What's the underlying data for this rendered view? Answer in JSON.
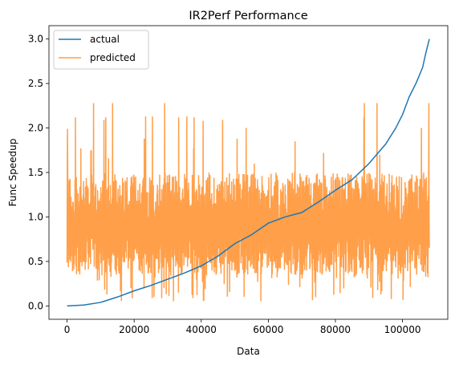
{
  "chart_data": {
    "type": "line",
    "title": "IR2Perf Performance",
    "xlabel": "Data",
    "ylabel": "Func Speedup",
    "xlim": [
      -5400,
      113500
    ],
    "ylim": [
      -0.15,
      3.15
    ],
    "xticks": [
      0,
      20000,
      40000,
      60000,
      80000,
      100000
    ],
    "yticks": [
      0.0,
      0.5,
      1.0,
      1.5,
      2.0,
      2.5,
      3.0
    ],
    "xtick_labels": [
      "0",
      "20000",
      "40000",
      "60000",
      "80000",
      "100000"
    ],
    "ytick_labels": [
      "0.0",
      "0.5",
      "1.0",
      "1.5",
      "2.0",
      "2.5",
      "3.0"
    ],
    "legend_position": "upper-left",
    "series": [
      {
        "name": "actual",
        "color": "#1f77b4",
        "x": [
          0,
          5000,
          10000,
          15000,
          20000,
          25000,
          30000,
          35000,
          40000,
          45000,
          50000,
          55000,
          60000,
          65000,
          70000,
          75000,
          80000,
          85000,
          90000,
          95000,
          98000,
          100000,
          102000,
          104000,
          106000,
          107000,
          108000
        ],
        "y": [
          0.0,
          0.01,
          0.04,
          0.1,
          0.17,
          0.23,
          0.3,
          0.37,
          0.45,
          0.56,
          0.7,
          0.8,
          0.93,
          1.0,
          1.05,
          1.17,
          1.3,
          1.42,
          1.6,
          1.82,
          2.0,
          2.15,
          2.35,
          2.5,
          2.68,
          2.85,
          3.0
        ]
      },
      {
        "name": "predicted",
        "color": "#ff7f0e",
        "opacity": 0.75,
        "x_range": [
          0,
          108000
        ],
        "y_range": [
          0.05,
          2.28
        ],
        "note": "dense noisy predictions, typically between 0.4 and 1.3 with spikes up to 2.28"
      }
    ]
  }
}
